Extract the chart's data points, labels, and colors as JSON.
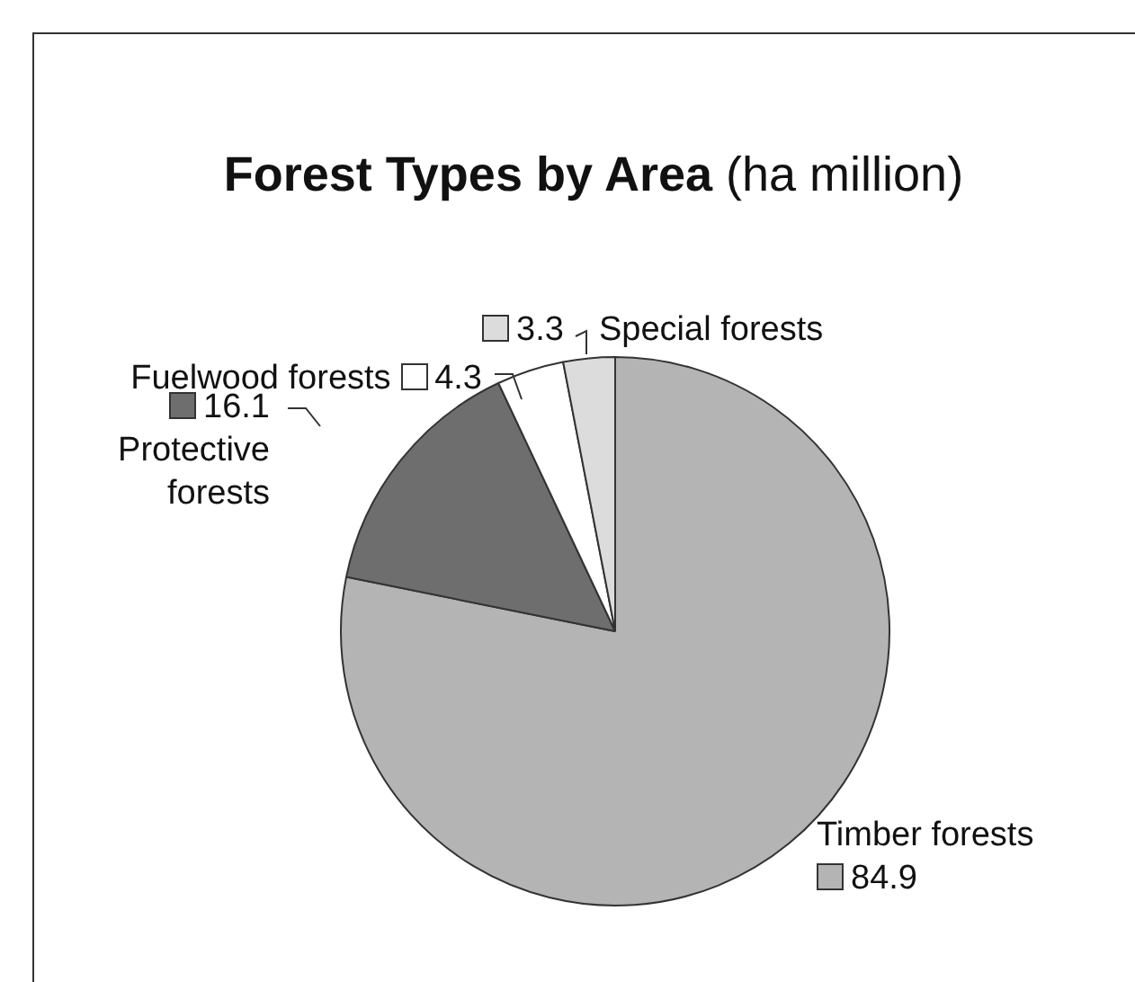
{
  "chart_data": {
    "type": "pie",
    "title": "Forest Types by Area",
    "subtitle": "(ha million)",
    "categories": [
      "Timber forests",
      "Protective forests",
      "Fuelwood forests",
      "Special forests"
    ],
    "values": [
      84.9,
      16.1,
      4.3,
      3.3
    ],
    "colors": [
      "#b4b4b4",
      "#6e6e6e",
      "#ffffff",
      "#dcdcdc"
    ],
    "data_labels": true
  }
}
